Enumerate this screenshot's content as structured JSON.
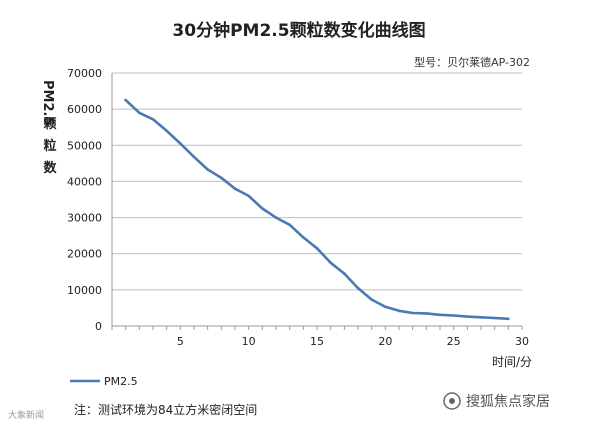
{
  "chart_data": {
    "type": "line",
    "title": "30分钟PM2.5颗粒数变化曲线图",
    "model_label": "型号：贝尔莱德AP-302",
    "ylabel": "PM2.5颗粒数",
    "xlabel": "时间/分",
    "xlim": [
      0,
      30
    ],
    "ylim": [
      0,
      70000
    ],
    "x_ticks": [
      5,
      10,
      15,
      20,
      25,
      30
    ],
    "y_ticks": [
      0,
      10000,
      20000,
      30000,
      40000,
      50000,
      60000,
      70000
    ],
    "grid": "horizontal",
    "legend": "bottom-left",
    "series": [
      {
        "name": "PM2.5",
        "color": "#4a7ab5",
        "x": [
          1,
          2,
          3,
          4,
          5,
          6,
          7,
          8,
          9,
          10,
          11,
          12,
          13,
          14,
          15,
          16,
          17,
          18,
          19,
          20,
          21,
          22,
          23,
          24,
          25,
          26,
          27,
          28,
          29
        ],
        "y": [
          62500,
          59000,
          57200,
          54000,
          50500,
          46800,
          43300,
          41000,
          38000,
          36000,
          32500,
          30000,
          28000,
          24500,
          21500,
          17500,
          14500,
          10500,
          7300,
          5300,
          4200,
          3600,
          3500,
          3100,
          2900,
          2600,
          2400,
          2200,
          2000
        ]
      }
    ]
  },
  "note": "注：测试环境为84立方米密闭空间",
  "brand": "搜狐焦点家居",
  "watermark": "大象新闻"
}
